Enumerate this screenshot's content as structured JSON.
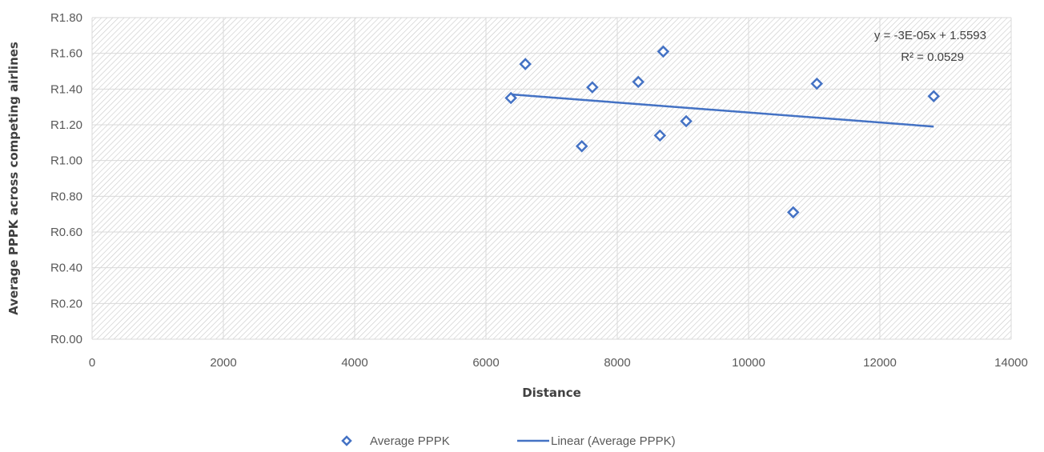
{
  "chart_data": {
    "type": "scatter",
    "xlabel": "Distance",
    "ylabel": "Average PPPK across competing airlines",
    "xlim": [
      0,
      14000
    ],
    "ylim": [
      0,
      1.8
    ],
    "x_ticks": [
      "0",
      "2000",
      "4000",
      "6000",
      "8000",
      "10000",
      "12000",
      "14000"
    ],
    "y_ticks": [
      "R0.00",
      "R0.20",
      "R0.40",
      "R0.60",
      "R0.80",
      "R1.00",
      "R1.20",
      "R1.40",
      "R1.60",
      "R1.80"
    ],
    "grid": true,
    "plot_fill": "diagonal hatch",
    "legend_position": "bottom",
    "series": [
      {
        "name": "Average PPPK",
        "marker": "diamond",
        "color": "#4472C4",
        "points": [
          [
            6380,
            1.35
          ],
          [
            6600,
            1.54
          ],
          [
            7460,
            1.08
          ],
          [
            7620,
            1.41
          ],
          [
            8320,
            1.44
          ],
          [
            8650,
            1.14
          ],
          [
            8700,
            1.61
          ],
          [
            9050,
            1.22
          ],
          [
            10680,
            0.71
          ],
          [
            11040,
            1.43
          ],
          [
            12820,
            1.36
          ]
        ]
      },
      {
        "name": "Linear (Average PPPK)",
        "type": "line",
        "color": "#4472C4",
        "x": [
          6380,
          12820
        ],
        "y": [
          1.37,
          1.19
        ]
      }
    ],
    "annotations": {
      "equation": "y = -3E-05x + 1.5593",
      "r_squared": "R² = 0.0529"
    }
  }
}
